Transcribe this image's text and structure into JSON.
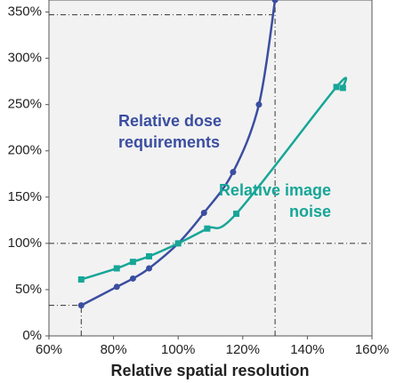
{
  "chart_data": {
    "type": "line",
    "x_label": "Relative spatial resolution",
    "xlim": [
      60,
      160
    ],
    "ylim": [
      0,
      363
    ],
    "xticks": [
      {
        "value": 60,
        "label": "60%"
      },
      {
        "value": 80,
        "label": "80%"
      },
      {
        "value": 100,
        "label": "100%"
      },
      {
        "value": 120,
        "label": "120%"
      },
      {
        "value": 140,
        "label": "140%"
      },
      {
        "value": 160,
        "label": "160%"
      }
    ],
    "yticks": [
      {
        "value": 0,
        "label": "0%"
      },
      {
        "value": 50,
        "label": "50%"
      },
      {
        "value": 100,
        "label": "100%"
      },
      {
        "value": 150,
        "label": "150%"
      },
      {
        "value": 200,
        "label": "200%"
      },
      {
        "value": 250,
        "label": "250%"
      },
      {
        "value": 300,
        "label": "300%"
      },
      {
        "value": 350,
        "label": "350%"
      }
    ],
    "series": [
      {
        "name": "Relative dose requirements",
        "color": "#3b4ea0",
        "marker": "circle",
        "x": [
          70,
          81,
          86,
          91,
          100,
          108,
          117,
          125,
          130
        ],
        "values": [
          33,
          53,
          62,
          73,
          100,
          133,
          177,
          250,
          363
        ]
      },
      {
        "name": "Relative image noise",
        "color": "#17a697",
        "marker": "square",
        "x": [
          70,
          81,
          86,
          91,
          100,
          109,
          118,
          149,
          151
        ],
        "values": [
          61,
          73,
          80,
          86,
          100,
          116,
          132,
          269,
          268
        ]
      }
    ],
    "guide_lines": [
      {
        "x": [
          60,
          130
        ],
        "y": [
          347,
          347
        ]
      },
      {
        "x": [
          130,
          130
        ],
        "y": [
          0,
          363
        ]
      },
      {
        "x": [
          60,
          160
        ],
        "y": [
          100,
          100
        ]
      },
      {
        "x": [
          60,
          70
        ],
        "y": [
          33,
          33
        ]
      },
      {
        "x": [
          70,
          70
        ],
        "y": [
          0,
          33
        ]
      }
    ]
  }
}
